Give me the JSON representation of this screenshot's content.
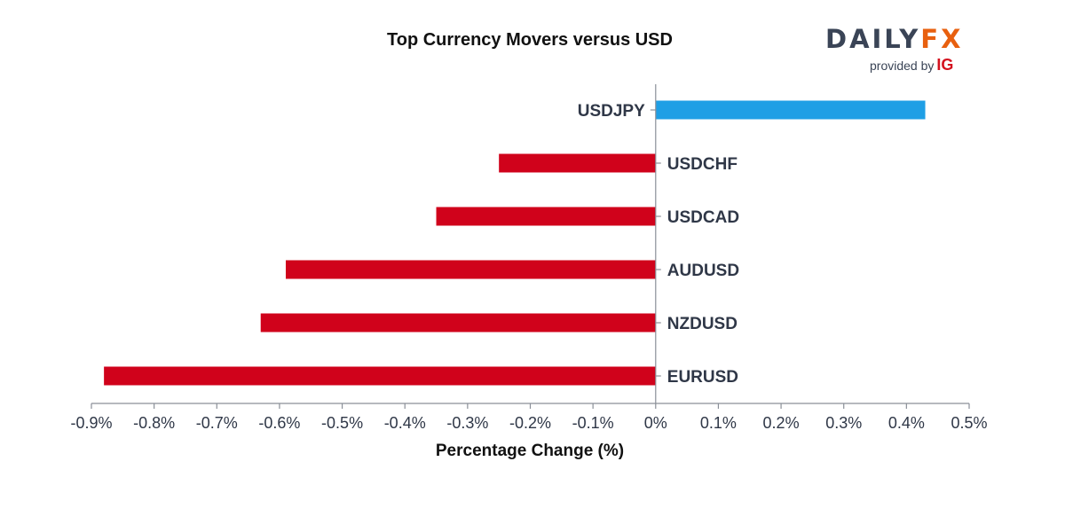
{
  "chart_data": {
    "type": "bar",
    "orientation": "horizontal",
    "title": "Top Currency Movers versus USD",
    "xlabel": "Percentage Change (%)",
    "ylabel": "",
    "categories": [
      "USDJPY",
      "USDCHF",
      "USDCAD",
      "AUDUSD",
      "NZDUSD",
      "EURUSD"
    ],
    "values": [
      0.43,
      -0.25,
      -0.35,
      -0.59,
      -0.63,
      -0.88
    ],
    "xlim": [
      -0.9,
      0.5
    ],
    "xticks": [
      -0.9,
      -0.8,
      -0.7,
      -0.6,
      -0.5,
      -0.4,
      -0.3,
      -0.2,
      -0.1,
      0,
      0.1,
      0.2,
      0.3,
      0.4,
      0.5
    ],
    "xtick_labels": [
      "-0.9%",
      "-0.8%",
      "-0.7%",
      "-0.6%",
      "-0.5%",
      "-0.4%",
      "-0.3%",
      "-0.2%",
      "-0.1%",
      "0%",
      "0.1%",
      "0.2%",
      "0.3%",
      "0.4%",
      "0.5%"
    ],
    "grid": false,
    "colors": {
      "positive": "#1f9fe5",
      "negative": "#d0021b"
    }
  },
  "logo": {
    "brand_part1": "DAILY",
    "brand_part2": "FX",
    "provided_by": "provided by",
    "ig": "IG"
  }
}
